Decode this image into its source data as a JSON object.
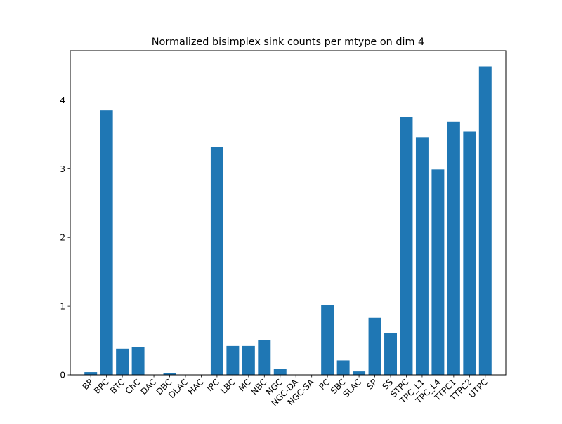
{
  "chart_data": {
    "type": "bar",
    "title": "Normalized bisimplex sink counts per mtype on dim 4",
    "xlabel": "",
    "ylabel": "",
    "categories": [
      "BP",
      "BPC",
      "BTC",
      "ChC",
      "DAC",
      "DBC",
      "DLAC",
      "HAC",
      "IPC",
      "LBC",
      "MC",
      "NBC",
      "NGC",
      "NGC-DA",
      "NGC-SA",
      "PC",
      "SBC",
      "SLAC",
      "SP",
      "SS",
      "STPC",
      "TPC_L1",
      "TPC_L4",
      "TTPC1",
      "TTPC2",
      "UTPC"
    ],
    "values": [
      0.04,
      3.85,
      0.38,
      0.4,
      0.0,
      0.03,
      0.0,
      0.0,
      3.32,
      0.42,
      0.42,
      0.51,
      0.09,
      0.0,
      0.0,
      1.02,
      0.21,
      0.05,
      0.83,
      0.61,
      3.75,
      3.46,
      2.99,
      3.68,
      3.54,
      4.49
    ],
    "yticks": [
      0,
      1,
      2,
      3,
      4
    ],
    "ylim": [
      0,
      4.72
    ],
    "grid": false,
    "bar_color": "#1f77b4"
  }
}
